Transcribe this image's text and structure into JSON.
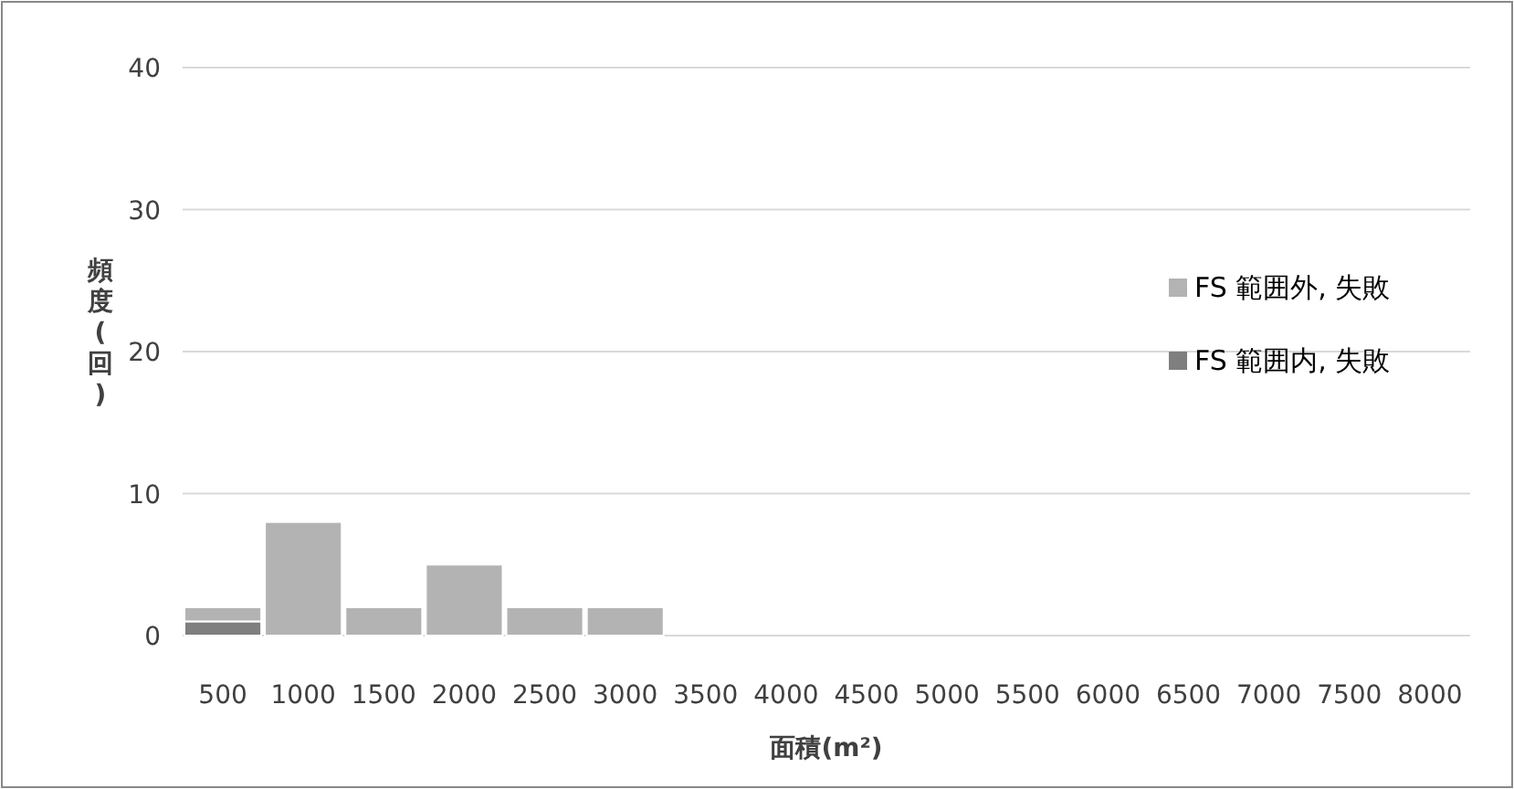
{
  "chart_data": {
    "type": "bar",
    "stacked": true,
    "xlabel": "面積(m²)",
    "ylabel": "頻度(回)",
    "categories": [
      "500",
      "1000",
      "1500",
      "2000",
      "2500",
      "3000",
      "3500",
      "4000",
      "4500",
      "5000",
      "5500",
      "6000",
      "6500",
      "7000",
      "7500",
      "8000"
    ],
    "series": [
      {
        "name": "FS 範囲内, 失敗",
        "color": "#7f7f7f",
        "values": [
          1,
          0,
          0,
          0,
          0,
          0,
          0,
          0,
          0,
          0,
          0,
          0,
          0,
          0,
          0,
          0
        ]
      },
      {
        "name": "FS 範囲外, 失敗",
        "color": "#b3b3b3",
        "values": [
          1,
          8,
          2,
          5,
          2,
          2,
          0,
          0,
          0,
          0,
          0,
          0,
          0,
          0,
          0,
          0
        ]
      }
    ],
    "ylim": [
      0,
      40
    ],
    "yticks": [
      0,
      10,
      20,
      30,
      40
    ],
    "grid": "y",
    "legend": "right"
  }
}
